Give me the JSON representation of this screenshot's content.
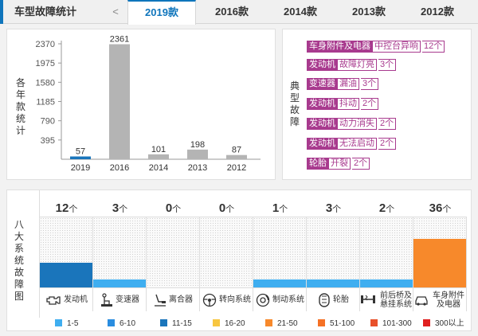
{
  "header": {
    "title": "车型故障统计",
    "prev_arrow": "<",
    "tabs": [
      {
        "label": "2019款",
        "active": true
      },
      {
        "label": "2016款",
        "active": false
      },
      {
        "label": "2014款",
        "active": false
      },
      {
        "label": "2013款",
        "active": false
      },
      {
        "label": "2012款",
        "active": false
      }
    ]
  },
  "years_panel": {
    "side_label": [
      "各",
      "年",
      "款",
      "统",
      "计"
    ],
    "chart_data": {
      "type": "bar",
      "categories": [
        "2019",
        "2016",
        "2014",
        "2013",
        "2012"
      ],
      "values": [
        57,
        2361,
        101,
        198,
        87
      ],
      "ylim": [
        0,
        2370
      ],
      "yticks": [
        395,
        790,
        1185,
        1580,
        1975,
        2370
      ],
      "highlight_color": "#1a75bb",
      "bar_color": "#b4b4b4"
    }
  },
  "typical_panel": {
    "side_label": [
      "典",
      "型",
      "故",
      "障"
    ],
    "faults": [
      {
        "system": "车身附件及电器",
        "desc": "中控台异响",
        "count": "12个"
      },
      {
        "system": "发动机",
        "desc": "故障灯亮",
        "count": "3个"
      },
      {
        "system": "变速器",
        "desc": "漏油",
        "count": "3个"
      },
      {
        "system": "发动机",
        "desc": "抖动",
        "count": "2个"
      },
      {
        "system": "发动机",
        "desc": "动力消失",
        "count": "2个"
      },
      {
        "system": "发动机",
        "desc": "无法启动",
        "count": "2个"
      },
      {
        "system": "轮胎",
        "desc": "开裂",
        "count": "2个"
      }
    ]
  },
  "eight_panel": {
    "side_label": [
      "八",
      "大",
      "系",
      "统",
      "故",
      "障",
      "图"
    ],
    "unit": "个",
    "systems": [
      {
        "name": "发动机",
        "count": 12,
        "color": "#1a75bb",
        "icon": "engine-icon"
      },
      {
        "name": "变速器",
        "count": 3,
        "color": "#3faef0",
        "icon": "gear-shift-icon"
      },
      {
        "name": "离合器",
        "count": 0,
        "color": "#3faef0",
        "icon": "clutch-pedal-icon"
      },
      {
        "name": "转向系统",
        "count": 0,
        "color": "#3faef0",
        "icon": "steering-wheel-icon"
      },
      {
        "name": "制动系统",
        "count": 1,
        "color": "#3faef0",
        "icon": "brake-disc-icon"
      },
      {
        "name": "轮胎",
        "count": 3,
        "color": "#3faef0",
        "icon": "tire-icon"
      },
      {
        "name": "前后桥及悬挂系统",
        "count": 2,
        "color": "#3faef0",
        "icon": "suspension-icon"
      },
      {
        "name": "车身附件及电器",
        "count": 36,
        "color": "#f7892b",
        "icon": "car-body-icon"
      }
    ],
    "legend": [
      {
        "label": "1-5",
        "color": "#3faef0"
      },
      {
        "label": "6-10",
        "color": "#2a8de0"
      },
      {
        "label": "11-15",
        "color": "#1a75bb"
      },
      {
        "label": "16-20",
        "color": "#f7c640"
      },
      {
        "label": "21-50",
        "color": "#f7892b"
      },
      {
        "label": "51-100",
        "color": "#f57125"
      },
      {
        "label": "101-300",
        "color": "#e8502a"
      },
      {
        "label": "300以上",
        "color": "#e02020"
      }
    ]
  }
}
